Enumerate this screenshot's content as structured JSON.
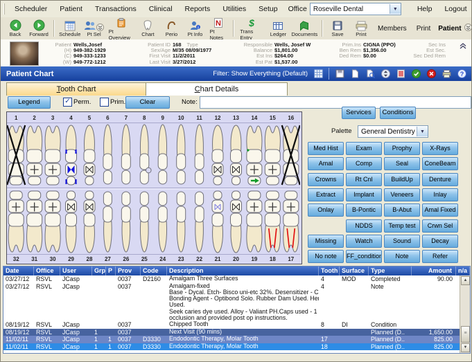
{
  "menu": {
    "items": [
      "Scheduler",
      "Patient",
      "Transactions",
      "Clinical",
      "Reports",
      "Utilities",
      "Setup"
    ],
    "office_label": "Office",
    "office_value": "Roseville Dental",
    "help": "Help",
    "logout": "Logout"
  },
  "toolbar": {
    "buttons": [
      {
        "label": "Back",
        "icon": "back-icon"
      },
      {
        "label": "Forward",
        "icon": "forward-icon"
      },
      {
        "sep": true
      },
      {
        "label": "Schedule",
        "icon": "schedule-icon"
      },
      {
        "label": "Pt Sel",
        "icon": "pt-sel-icon",
        "badge": "chevron-badge-icon"
      },
      {
        "label": "Pt Overview",
        "icon": "pt-overview-icon"
      },
      {
        "label": "Chart",
        "icon": "tooth-chart-icon"
      },
      {
        "label": "Perio",
        "icon": "perio-icon"
      },
      {
        "label": "Pt Info",
        "icon": "pt-info-icon"
      },
      {
        "label": "Pt Notes",
        "icon": "pt-notes-icon"
      },
      {
        "sep": true
      },
      {
        "label": "Trans Entry",
        "icon": "trans-entry-icon"
      },
      {
        "label": "Ledger",
        "icon": "ledger-icon"
      },
      {
        "label": "Documents",
        "icon": "documents-icon"
      },
      {
        "sep": true
      },
      {
        "label": "Save",
        "icon": "save-icon"
      },
      {
        "label": "Print",
        "icon": "print-icon"
      }
    ],
    "members_label": "Members",
    "print_label": "Print",
    "patient_label": "Patient",
    "search_value": ""
  },
  "patient_info": {
    "columns": [
      {
        "rows": [
          {
            "label": "Patient",
            "value": "Wells,Josef"
          },
          {
            "label": "(H)",
            "value": "949-382-1929"
          },
          {
            "label": "(C)",
            "value": "949-333-1233"
          },
          {
            "label": "(W)",
            "value": "949-772-1212"
          }
        ]
      },
      {
        "rows": [
          {
            "label": "Patient ID",
            "value": "168",
            "label2": "Type"
          },
          {
            "label": "Sex/Age",
            "value": "M/35   08/09/1977"
          },
          {
            "label": "First Visit",
            "value": "11/2/2011"
          },
          {
            "label": "Last Visit",
            "value": "3/27/2012"
          }
        ]
      },
      {
        "rows": [
          {
            "label": "Responsible",
            "value": "Wells, Josef W"
          },
          {
            "label": "Balance",
            "value": "$1,801.00"
          },
          {
            "label": "Est Ins",
            "value": "$264.00"
          },
          {
            "label": "Est Pat",
            "value": "$1,537.00"
          }
        ]
      },
      {
        "rows": [
          {
            "label": "Prim.Ins",
            "value": "CIGNA (PPO)"
          },
          {
            "label": "Ben Rem",
            "value": "$1,356.00"
          },
          {
            "label": "Ded Rem",
            "value": "$0.00"
          }
        ]
      },
      {
        "rows": [
          {
            "label": "Sec Ins",
            "value": ""
          },
          {
            "label": "Est Sec.",
            "value": ""
          },
          {
            "label": "Sec Ded Rem",
            "value": ""
          }
        ]
      }
    ]
  },
  "titlebar": {
    "title": "Patient Chart",
    "filter_label": "Filter: Show Everything (Default)",
    "icons": [
      "grid-icon",
      "save-small-icon",
      "new-page-icon",
      "print-preview-icon",
      "sort-icon",
      "forms-icon",
      "approve-icon",
      "cancel-icon",
      "printer-icon",
      "help-icon"
    ]
  },
  "tabs": {
    "tooth_chart": "Tooth Chart",
    "chart_details": "Chart Details"
  },
  "controls": {
    "legend": "Legend",
    "perm": "Perm.",
    "perm_checked": true,
    "prim": "Prim.",
    "prim_checked": false,
    "clear": "Clear",
    "note_label": "Note:",
    "note_value": ""
  },
  "right_panel": {
    "services": "Services",
    "conditions": "Conditions",
    "palette_label": "Palette",
    "palette_value": "General Dentistry",
    "buttons": [
      [
        "Med Hist",
        "Exam",
        "Prophy",
        "X-Rays"
      ],
      [
        "Amal",
        "Comp",
        "Seal",
        "ConeBeam"
      ],
      [
        "Crowns",
        "Rt Cnl",
        "BuildUp",
        "Denture"
      ],
      [
        "Extract",
        "Implant",
        "Veneers",
        "Inlay"
      ],
      [
        "Onlay",
        "B-Pontic",
        "B-Abut",
        "Amal Fixed"
      ],
      [
        "",
        "NDDS",
        "Temp test",
        "Crwn Sel"
      ],
      [
        "Missing",
        "Watch",
        "Sound",
        "Decay"
      ],
      [
        "No note",
        "FF_condition",
        "Note",
        "Refer"
      ]
    ]
  },
  "tooth_chart": {
    "upper": [
      {
        "num": "1",
        "type": "molar",
        "marks": [
          "missing"
        ]
      },
      {
        "num": "2",
        "type": "molar",
        "marks": [
          "plus"
        ]
      },
      {
        "num": "3",
        "type": "molar",
        "marks": [
          "plus"
        ]
      },
      {
        "num": "4",
        "type": "premolar",
        "marks": [
          "blue-crown"
        ]
      },
      {
        "num": "5",
        "type": "premolar",
        "marks": [
          "bowtie"
        ]
      },
      {
        "num": "6",
        "type": "anterior",
        "marks": []
      },
      {
        "num": "7",
        "type": "anterior",
        "marks": []
      },
      {
        "num": "8",
        "type": "anterior",
        "marks": [
          "chipped"
        ]
      },
      {
        "num": "9",
        "type": "anterior",
        "marks": []
      },
      {
        "num": "10",
        "type": "anterior",
        "marks": []
      },
      {
        "num": "11",
        "type": "anterior",
        "marks": []
      },
      {
        "num": "12",
        "type": "premolar",
        "marks": [
          "bowtie"
        ]
      },
      {
        "num": "13",
        "type": "premolar",
        "marks": [
          "bowtie"
        ]
      },
      {
        "num": "14",
        "type": "molar",
        "marks": [
          "plus",
          "green-arrow"
        ]
      },
      {
        "num": "15",
        "type": "molar",
        "marks": [
          "plus"
        ]
      },
      {
        "num": "16",
        "type": "molar",
        "marks": [
          "missing"
        ]
      }
    ],
    "lower": [
      {
        "num": "32",
        "type": "molar",
        "marks": [
          "plus"
        ]
      },
      {
        "num": "31",
        "type": "molar",
        "marks": [
          "plus"
        ]
      },
      {
        "num": "30",
        "type": "molar",
        "marks": [
          "plus"
        ]
      },
      {
        "num": "29",
        "type": "premolar",
        "marks": [
          "bowtie"
        ]
      },
      {
        "num": "28",
        "type": "premolar",
        "marks": [
          "bowtie"
        ]
      },
      {
        "num": "27",
        "type": "anterior",
        "marks": []
      },
      {
        "num": "26",
        "type": "anterior",
        "marks": []
      },
      {
        "num": "25",
        "type": "anterior",
        "marks": []
      },
      {
        "num": "24",
        "type": "anterior",
        "marks": []
      },
      {
        "num": "23",
        "type": "anterior",
        "marks": []
      },
      {
        "num": "22",
        "type": "anterior",
        "marks": []
      },
      {
        "num": "21",
        "type": "premolar",
        "marks": [
          "blue-small"
        ]
      },
      {
        "num": "20",
        "type": "premolar",
        "marks": [
          "bowtie"
        ]
      },
      {
        "num": "19",
        "type": "molar",
        "marks": [
          "plus"
        ]
      },
      {
        "num": "18",
        "type": "molar",
        "marks": [
          "plus",
          "red-roots"
        ]
      },
      {
        "num": "17",
        "type": "molar",
        "marks": [
          "plus",
          "red-roots"
        ]
      }
    ]
  },
  "table": {
    "columns": [
      "Date",
      "Office",
      "User",
      "Grp",
      "P",
      "Prov",
      "Code",
      "Description",
      "Tooth",
      "Surface",
      "Type",
      "Amount",
      "n/a"
    ],
    "rows": [
      {
        "date": "03/27/12",
        "office": "RSVL",
        "user": "JCasp",
        "grp": "",
        "p": "",
        "prov": "0037",
        "code": "D2160",
        "desc": [
          "Amalgam Three Surfaces"
        ],
        "tooth": "4",
        "surface": "MOD",
        "type": "Completed",
        "amount": "90.00",
        "sel": null
      },
      {
        "date": "03/27/12",
        "office": "RSVL",
        "user": "JCasp",
        "grp": "",
        "p": "",
        "prov": "0037",
        "code": "",
        "desc": [
          "Amalgam-fixed",
          "Base - Dycal. Etch- Bisco uni-etc 32%. Desensitizer - CFSE.",
          "Bonding Agent - Optibond Solo. Rubber Dam Used. Hemodent",
          "Used.",
          "Seek caries dye used. Alloy - Valiant PH.Caps used - 1 Checked",
          "occlusion and provided post op instructions."
        ],
        "tooth": "4",
        "surface": "",
        "type": "Note",
        "amount": "",
        "sel": null
      },
      {
        "date": "08/19/12",
        "office": "RSVL",
        "user": "JCasp",
        "grp": "",
        "p": "",
        "prov": "0037",
        "code": "",
        "desc": [
          "Chipped Tooth"
        ],
        "tooth": "8",
        "surface": "DI",
        "type": "Condition",
        "amount": "",
        "sel": null
      },
      {
        "date": "08/19/12",
        "office": "RSVL",
        "user": "JCasp",
        "grp": "1",
        "p": "",
        "prov": "0037",
        "code": "",
        "desc": [
          "Next Visit (90 mins)"
        ],
        "tooth": "",
        "surface": "",
        "type": "Planned (D..",
        "amount": "1,650.00",
        "sel": "dark"
      },
      {
        "date": "11/02/11",
        "office": "RSVL",
        "user": "JCasp",
        "grp": "1",
        "p": "1",
        "prov": "0037",
        "code": "D3330",
        "desc": [
          "Endodontic Therapy, Molar Tooth"
        ],
        "tooth": "17",
        "surface": "",
        "type": "Planned (D..",
        "amount": "825.00",
        "sel": "mid"
      },
      {
        "date": "11/02/11",
        "office": "RSVL",
        "user": "JCasp",
        "grp": "1",
        "p": "1",
        "prov": "0037",
        "code": "D3330",
        "desc": [
          "Endodontic Therapy, Molar Tooth"
        ],
        "tooth": "18",
        "surface": "",
        "type": "Planned (D..",
        "amount": "825.00",
        "sel": "bright"
      }
    ]
  },
  "colors": {
    "titlebar_start": "#3b6cc6",
    "titlebar_end": "#16409e",
    "chart_bg": "#d9d9f3",
    "button_blue": "#8fc3ea",
    "row_selected_dark": "#47639f",
    "row_selected_mid": "#6e86c6",
    "row_selected_bright": "#2e8ce6"
  }
}
